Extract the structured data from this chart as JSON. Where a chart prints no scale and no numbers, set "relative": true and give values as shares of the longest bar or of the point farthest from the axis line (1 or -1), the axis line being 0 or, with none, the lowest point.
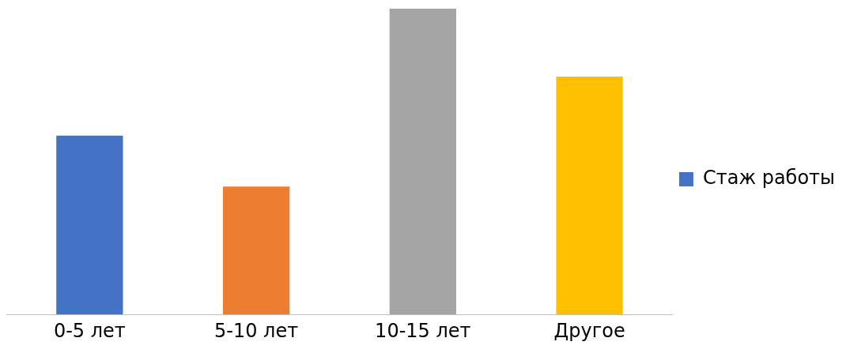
{
  "chart_data": {
    "type": "bar",
    "relative": true,
    "categories": [
      "0-5 лет",
      "5-10 лет",
      "10-15 лет",
      "Другое"
    ],
    "series": [
      {
        "name": "Стаж работы",
        "color": "#4472c4",
        "colors": [
          "#4472c4",
          "#ed7d31",
          "#a5a5a5",
          "#ffc000"
        ],
        "values": [
          0.585,
          0.418,
          1,
          0.778
        ]
      }
    ],
    "legend": "right",
    "grid": false
  }
}
